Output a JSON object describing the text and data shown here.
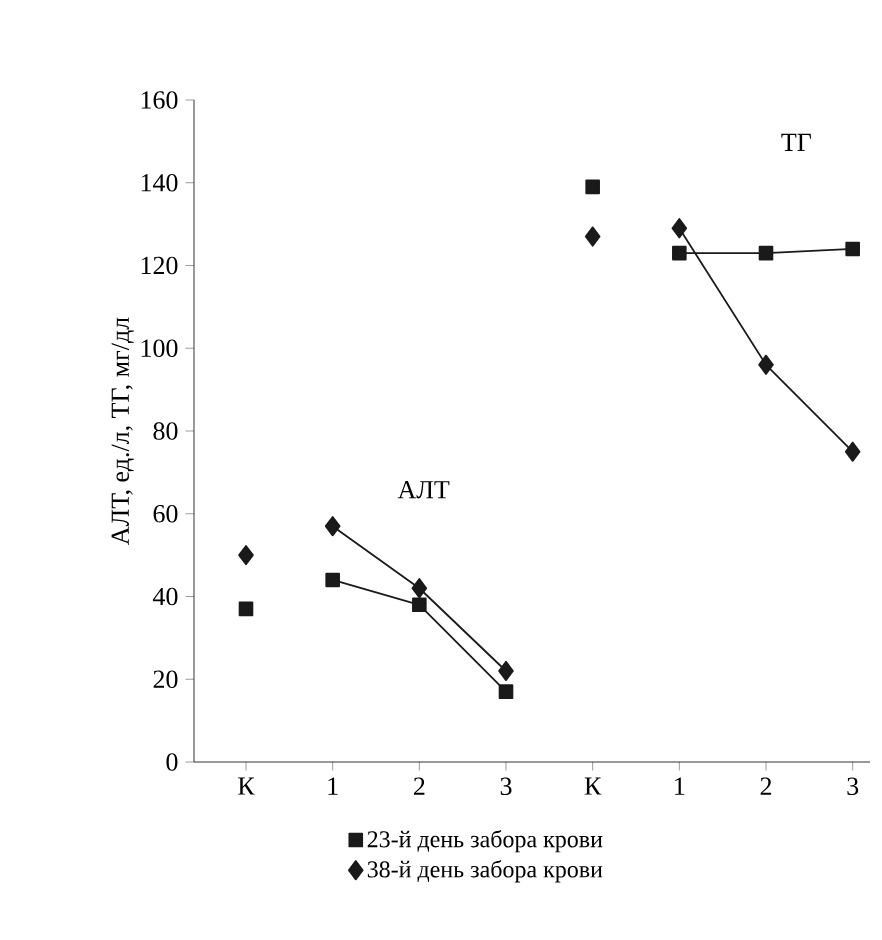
{
  "chart_data": {
    "type": "scatter",
    "ylabel": "АЛТ, ед./л, ТГ, мг/дл",
    "categories": [
      "К",
      "1",
      "2",
      "3",
      "К",
      "1",
      "2",
      "3"
    ],
    "ylim": [
      0,
      160
    ],
    "yticks": [
      0,
      20,
      40,
      60,
      80,
      100,
      120,
      140,
      160
    ],
    "legend": "bottom",
    "annotations": [
      "АЛТ",
      "ТГ"
    ],
    "series": [
      {
        "name": "23-й день забора крови",
        "color": "#1a1a1a",
        "marker": "square",
        "values": [
          37,
          44,
          38,
          17,
          139,
          123,
          123,
          124
        ]
      },
      {
        "name": "38-й день забора крови",
        "color": "#1a1a1a",
        "marker": "diamond",
        "values": [
          50,
          57,
          42,
          22,
          127,
          129,
          96,
          75
        ]
      },
      {
        "type": "line",
        "color": "#1a1a1a",
        "marker": "none",
        "values": [
          null,
          44,
          38,
          17,
          null,
          123,
          123,
          124
        ]
      },
      {
        "type": "line",
        "color": "#1a1a1a",
        "marker": "none",
        "values": [
          null,
          57,
          42,
          22,
          null,
          129,
          96,
          75
        ]
      }
    ]
  }
}
